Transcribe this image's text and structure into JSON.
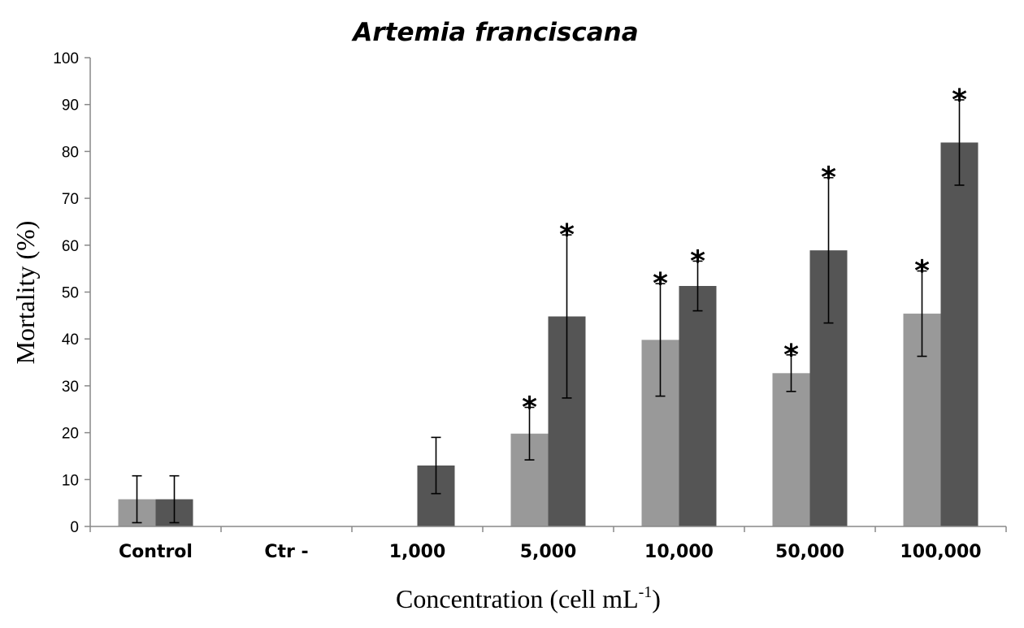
{
  "chart_data": {
    "type": "bar",
    "title": "Artemia franciscana",
    "xlabel": {
      "main": "Concentration (cell mL",
      "sup": "-1",
      "close": ")"
    },
    "ylabel": "Mortality  (%)",
    "ylim": [
      0,
      100
    ],
    "yticks": [
      0,
      10,
      20,
      30,
      40,
      50,
      60,
      70,
      80,
      90,
      100
    ],
    "grid": false,
    "categories": [
      "Control",
      "Ctr -",
      "1,000",
      "5,000",
      "10,000",
      "50,000",
      "100,000"
    ],
    "series": [
      {
        "color": "#999999",
        "values": [
          5.8,
          0,
          0,
          19.8,
          39.8,
          32.7,
          45.4
        ],
        "errors": [
          5.0,
          null,
          null,
          5.6,
          12.0,
          3.9,
          9.1
        ],
        "significant": [
          false,
          false,
          false,
          true,
          true,
          true,
          true
        ]
      },
      {
        "color": "#555555",
        "values": [
          5.8,
          0,
          13.0,
          44.8,
          51.3,
          58.9,
          81.9
        ],
        "errors": [
          5.0,
          null,
          6.0,
          17.4,
          5.3,
          15.5,
          9.1
        ],
        "significant": [
          false,
          false,
          false,
          true,
          true,
          true,
          true
        ]
      }
    ],
    "significance_marker": "*"
  }
}
